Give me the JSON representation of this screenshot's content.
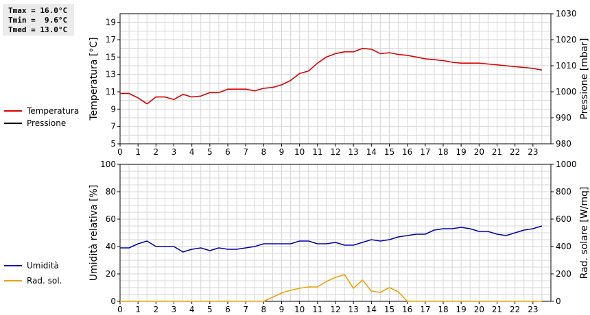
{
  "stats": [
    {
      "label": "Tmax = 16.0°C"
    },
    {
      "label": "Tmin =  9.6°C"
    },
    {
      "label": "Tmed = 13.0°C"
    }
  ],
  "legend_top": [
    {
      "name": "Temperatura",
      "color": "#dd0000"
    },
    {
      "name": "Pressione",
      "color": "#000000"
    }
  ],
  "legend_bottom": [
    {
      "name": "Umidità",
      "color": "#0000bb"
    },
    {
      "name": "Rad. sol.",
      "color": "#f0a000"
    }
  ],
  "chart_data": [
    {
      "type": "line",
      "ylabel": "Temperatura [°C]",
      "y2label": "Pressione [mbar]",
      "xlim": [
        0,
        24
      ],
      "ylim": [
        5,
        20
      ],
      "y2lim": [
        980,
        1030
      ],
      "x_ticks": [
        0,
        1,
        2,
        3,
        4,
        5,
        6,
        7,
        8,
        9,
        10,
        11,
        12,
        13,
        14,
        15,
        16,
        17,
        18,
        19,
        20,
        21,
        22,
        23
      ],
      "y_ticks": [
        5,
        7,
        9,
        11,
        13,
        15,
        17,
        19
      ],
      "y2_ticks": [
        980,
        990,
        1000,
        1010,
        1020,
        1030
      ],
      "grid": true,
      "series": [
        {
          "name": "Temperatura",
          "color": "#dd0000",
          "axis": "left",
          "x": [
            0,
            0.5,
            1,
            1.5,
            2,
            2.5,
            3,
            3.5,
            4,
            4.5,
            5,
            5.5,
            6,
            6.5,
            7,
            7.5,
            8,
            8.5,
            9,
            9.5,
            10,
            10.5,
            11,
            11.5,
            12,
            12.5,
            13,
            13.5,
            14,
            14.5,
            15,
            15.5,
            16,
            16.5,
            17,
            17.5,
            18,
            18.5,
            19,
            19.5,
            20,
            20.5,
            21,
            21.5,
            22,
            22.5,
            23,
            23.5
          ],
          "values": [
            10.8,
            10.8,
            10.3,
            9.6,
            10.4,
            10.4,
            10.1,
            10.7,
            10.4,
            10.5,
            10.9,
            10.9,
            11.3,
            11.3,
            11.3,
            11.1,
            11.4,
            11.5,
            11.8,
            12.3,
            13.1,
            13.4,
            14.3,
            15.0,
            15.4,
            15.6,
            15.6,
            16.0,
            15.9,
            15.4,
            15.5,
            15.3,
            15.2,
            15.0,
            14.8,
            14.7,
            14.6,
            14.4,
            14.3,
            14.3,
            14.3,
            14.2,
            14.1,
            14.0,
            13.9,
            13.8,
            13.7,
            13.5
          ]
        },
        {
          "name": "Pressione",
          "color": "#000000",
          "axis": "right",
          "x": [],
          "values": []
        }
      ]
    },
    {
      "type": "line",
      "ylabel": "Umidità relativa [%]",
      "y2label": "Rad. solare [W/mq]",
      "xlim": [
        0,
        24
      ],
      "ylim": [
        0,
        100
      ],
      "y2lim": [
        0,
        1000
      ],
      "x_ticks": [
        0,
        1,
        2,
        3,
        4,
        5,
        6,
        7,
        8,
        9,
        10,
        11,
        12,
        13,
        14,
        15,
        16,
        17,
        18,
        19,
        20,
        21,
        22,
        23
      ],
      "y_ticks": [
        0,
        20,
        40,
        60,
        80,
        100
      ],
      "y2_ticks": [
        0,
        200,
        400,
        600,
        800,
        1000
      ],
      "grid": true,
      "series": [
        {
          "name": "Umidità",
          "color": "#0000bb",
          "axis": "left",
          "x": [
            0,
            0.5,
            1,
            1.5,
            2,
            2.5,
            3,
            3.5,
            4,
            4.5,
            5,
            5.5,
            6,
            6.5,
            7,
            7.5,
            8,
            8.5,
            9,
            9.5,
            10,
            10.5,
            11,
            11.5,
            12,
            12.5,
            13,
            13.5,
            14,
            14.5,
            15,
            15.5,
            16,
            16.5,
            17,
            17.5,
            18,
            18.5,
            19,
            19.5,
            20,
            20.5,
            21,
            21.5,
            22,
            22.5,
            23,
            23.5
          ],
          "values": [
            39,
            39,
            42,
            44,
            40,
            40,
            40,
            36,
            38,
            39,
            37,
            39,
            38,
            38,
            39,
            40,
            42,
            42,
            42,
            42,
            44,
            44,
            42,
            42,
            43,
            41,
            41,
            43,
            45,
            44,
            45,
            47,
            48,
            49,
            49,
            52,
            53,
            53,
            54,
            53,
            51,
            51,
            49,
            48,
            50,
            52,
            53,
            55
          ]
        },
        {
          "name": "Rad. sol.",
          "color": "#f0a000",
          "axis": "right",
          "x": [
            0,
            8,
            8.5,
            9,
            9.5,
            10,
            10.5,
            11,
            11.5,
            12,
            12.5,
            13,
            13.5,
            14,
            14.5,
            15,
            15.5,
            16,
            23.5
          ],
          "values": [
            0,
            0,
            30,
            60,
            80,
            95,
            105,
            105,
            145,
            175,
            195,
            95,
            155,
            75,
            65,
            100,
            70,
            0,
            0
          ]
        }
      ]
    }
  ]
}
